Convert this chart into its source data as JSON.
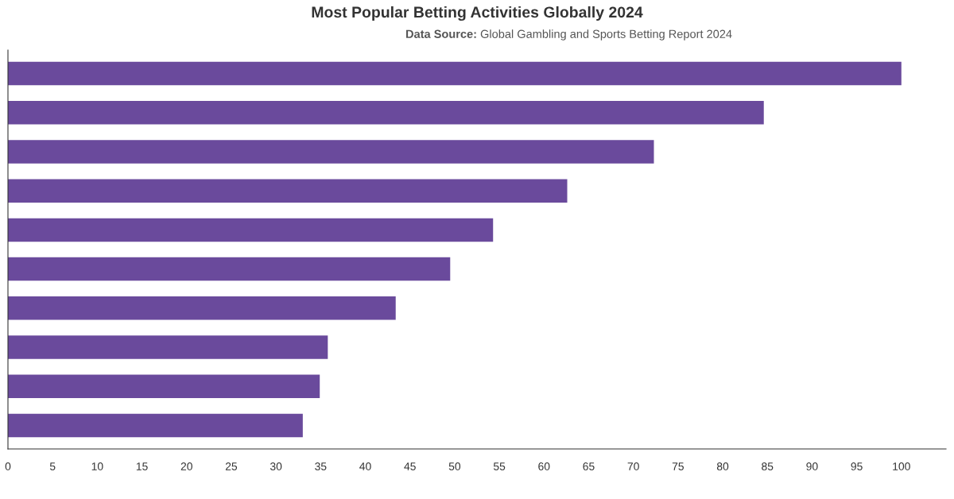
{
  "chart_data": {
    "type": "bar",
    "orientation": "horizontal",
    "title": "Most Popular Betting Activities Globally 2024",
    "subtitle": "Data Source: Global Gambling and Sports Betting Report 2024",
    "categories": [
      null,
      null,
      null,
      null,
      null,
      null,
      null,
      null,
      null,
      null
    ],
    "values": [
      100,
      84.6,
      72.3,
      62.6,
      54.3,
      49.5,
      43.4,
      35.8,
      34.9,
      33.0
    ],
    "color": "#6a4a9c",
    "xlim": [
      0,
      105
    ],
    "xticks": [
      0,
      5,
      10,
      15,
      20,
      25,
      30,
      35,
      40,
      45,
      50,
      55,
      60,
      65,
      70,
      75,
      80,
      85,
      90,
      95,
      100
    ],
    "grid": false,
    "legend": false,
    "tick_labels": "x"
  }
}
